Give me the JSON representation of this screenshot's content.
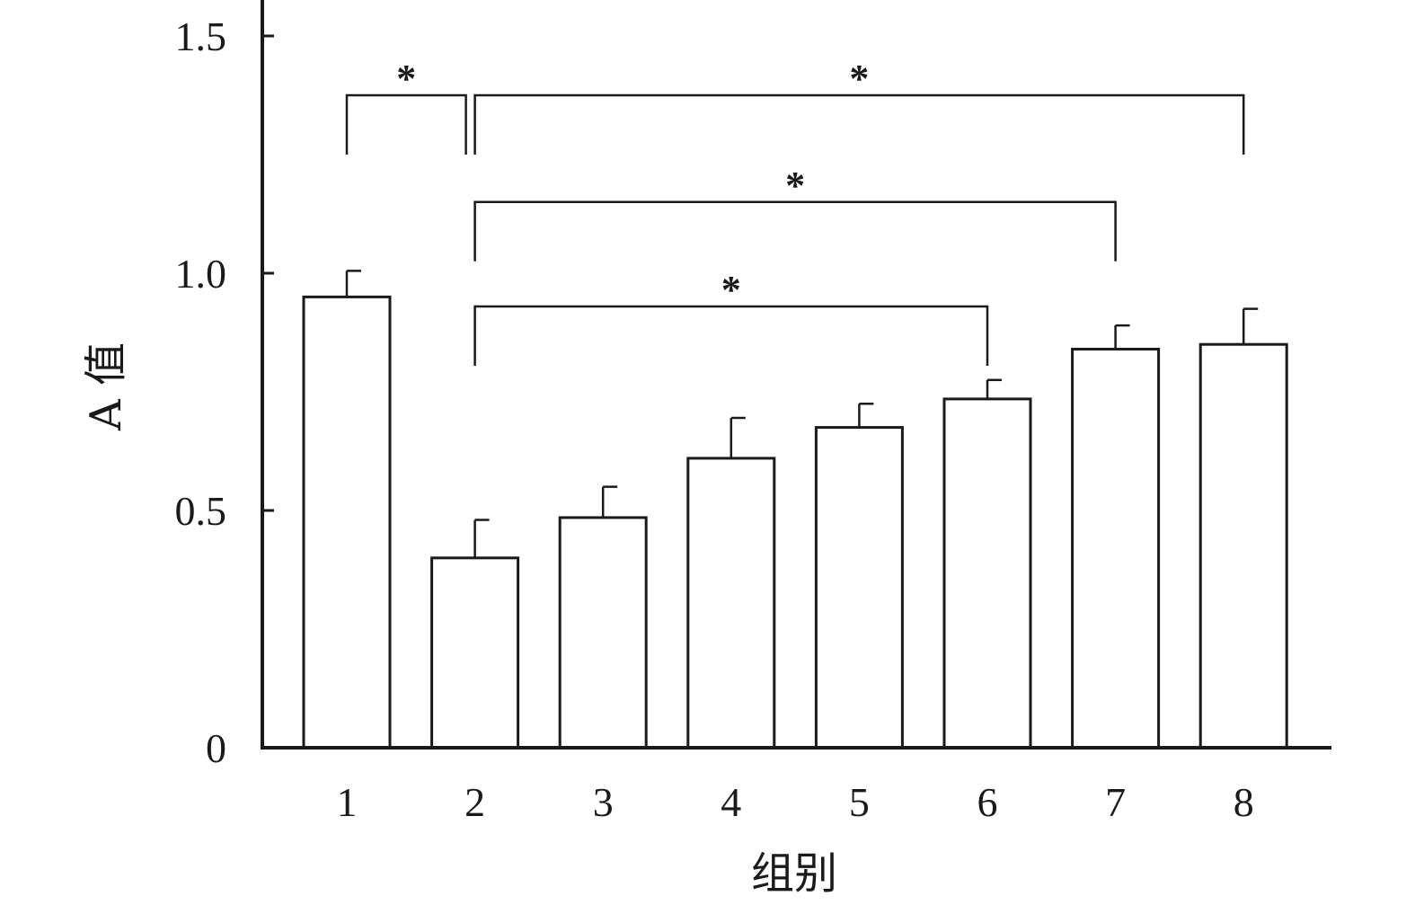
{
  "chart_data": {
    "type": "bar",
    "title": "",
    "xlabel": "组别",
    "ylabel": "A 值",
    "categories": [
      "1",
      "2",
      "3",
      "4",
      "5",
      "6",
      "7",
      "8"
    ],
    "values": [
      0.95,
      0.4,
      0.485,
      0.61,
      0.675,
      0.735,
      0.84,
      0.85
    ],
    "error": [
      0.055,
      0.08,
      0.065,
      0.085,
      0.05,
      0.04,
      0.05,
      0.075
    ],
    "ylim": [
      0,
      1.5
    ],
    "yticks": [
      0,
      0.5,
      1.0,
      1.5
    ],
    "ytick_labels": [
      "0",
      "0.5",
      "1.0",
      "1.5"
    ],
    "grid": false,
    "bar_fill": "#ffffff",
    "bar_edge": "#1a1a1a",
    "significance": [
      {
        "from": "1",
        "to": "2",
        "level": 1.375,
        "label": "*"
      },
      {
        "from": "2",
        "to": "8",
        "level": 1.375,
        "label": "*"
      },
      {
        "from": "2",
        "to": "7",
        "level": 1.15,
        "label": "*"
      },
      {
        "from": "2",
        "to": "6",
        "level": 0.93,
        "label": "*"
      }
    ]
  }
}
